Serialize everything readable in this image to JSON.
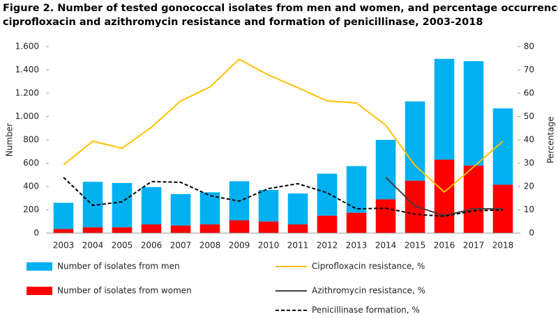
{
  "chart_data": {
    "type": "bar-line",
    "title": [
      "Figure 2. Number of tested  gonococcal isolates from men and women, and percentage occurrence of",
      "ciprofloxacin and azithromycin resistance  and formation of penicillinase, 2003-2018"
    ],
    "ylabel": "Number",
    "y2label": "Percentage",
    "categories": [
      "2003",
      "2004",
      "2005",
      "2006",
      "2007",
      "2008",
      "2009",
      "2010",
      "2011",
      "2012",
      "2013",
      "2014",
      "2015",
      "2016",
      "2017",
      "2018"
    ],
    "series": [
      {
        "name": "Number of isolates from men",
        "type": "bar",
        "color": "#00b0f0",
        "values": [
          225,
          390,
          380,
          320,
          270,
          275,
          335,
          270,
          265,
          360,
          400,
          510,
          680,
          865,
          895,
          655
        ]
      },
      {
        "name": "Number of isolates from women",
        "type": "bar",
        "color": "#ff0000",
        "values": [
          35,
          50,
          50,
          75,
          65,
          75,
          110,
          100,
          75,
          150,
          175,
          290,
          450,
          630,
          580,
          415
        ]
      },
      {
        "name": "Ciprofloxacin resistance, %",
        "type": "line",
        "axis": "y2",
        "color": "#ffc000",
        "values": [
          29.3,
          39.4,
          36.4,
          45.4,
          56.7,
          62.7,
          74.6,
          67.8,
          62.4,
          56.7,
          55.8,
          46.3,
          29,
          17.6,
          28.4,
          39.4
        ]
      },
      {
        "name": "Azithromycin resistance, %",
        "type": "line",
        "axis": "y2",
        "color": "#404040",
        "values": [
          null,
          null,
          null,
          null,
          null,
          null,
          null,
          null,
          null,
          null,
          null,
          23.9,
          11.6,
          7.5,
          10.4,
          10.4
        ]
      },
      {
        "name": "Penicillinase formation, %",
        "type": "line",
        "axis": "y2",
        "color": "#000000",
        "dashed": true,
        "values": [
          23.9,
          11.9,
          13.4,
          22.1,
          21.8,
          16.1,
          13.7,
          19.1,
          21.2,
          17.3,
          10.4,
          10.7,
          8.1,
          7.2,
          9.6,
          9.9
        ]
      }
    ],
    "ylim": [
      0,
      1600
    ],
    "yticks": [
      0,
      200,
      400,
      600,
      800,
      {
        "value": 1000,
        "label": "1.000"
      },
      {
        "value": 1200,
        "label": "1.200"
      },
      {
        "value": 1400,
        "label": "1.400"
      },
      {
        "value": 1600,
        "label": "1.600"
      }
    ],
    "y2lim": [
      0,
      80
    ],
    "y2ticks": [
      0,
      10,
      20,
      30,
      40,
      50,
      60,
      70,
      80
    ],
    "grid": false
  }
}
